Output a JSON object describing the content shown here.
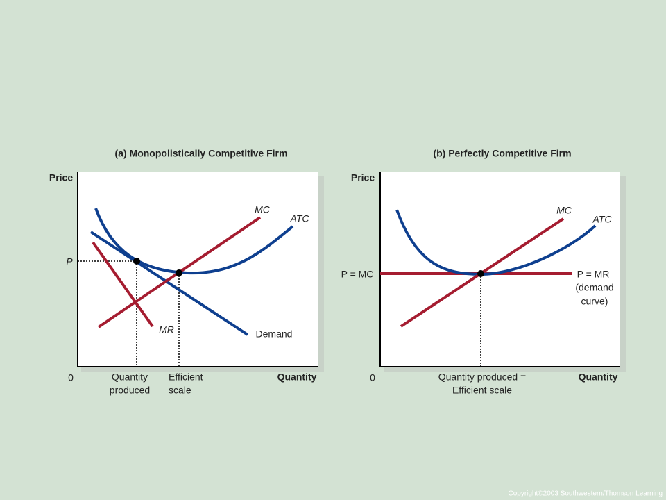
{
  "panels": [
    {
      "title": "(a) Monopolistically Competitive Firm",
      "y_axis": "Price",
      "x_axis": "Quantity",
      "origin": "0",
      "curves": {
        "mc": "MC",
        "atc": "ATC",
        "mr": "MR",
        "demand": "Demand"
      },
      "price_label": "P",
      "quantity_produced": [
        "Quantity",
        "produced"
      ],
      "efficient_scale": [
        "Efficient",
        "scale"
      ]
    },
    {
      "title": "(b) Perfectly Competitive Firm",
      "y_axis": "Price",
      "x_axis": "Quantity",
      "origin": "0",
      "curves": {
        "mc": "MC",
        "atc": "ATC",
        "price_line": "P = MR",
        "price_line_note": [
          "(demand",
          "curve)"
        ]
      },
      "price_label": "P = MC",
      "quantity_produced": [
        "Quantity produced =",
        "Efficient scale"
      ]
    }
  ],
  "copyright": "Copyright©2003  Southwestern/Thomson Learning"
}
